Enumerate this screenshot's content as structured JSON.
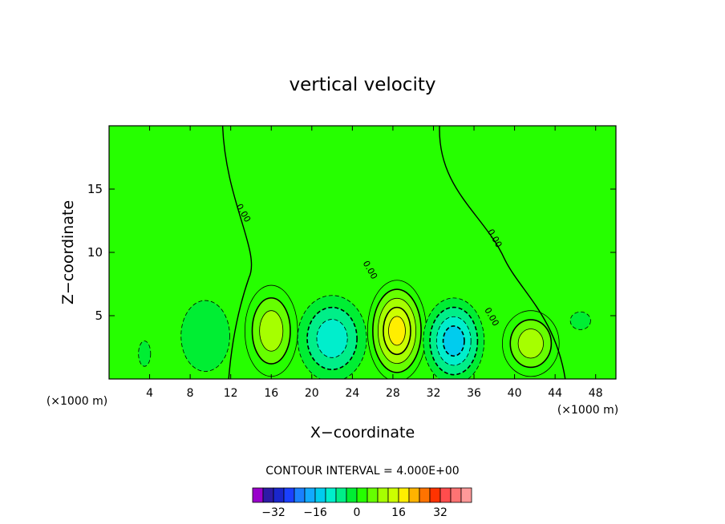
{
  "chart_data": {
    "type": "heatmap",
    "title": "vertical velocity",
    "xlabel": "X−coordinate",
    "ylabel": "Z−coordinate",
    "x_unit_left": "(×1000 m)",
    "x_unit_right": "(×1000 m)",
    "xlim": [
      0,
      50
    ],
    "ylim": [
      0,
      20
    ],
    "x_ticks": [
      4,
      8,
      12,
      16,
      20,
      24,
      28,
      32,
      36,
      40,
      44,
      48
    ],
    "x_tick_labels": [
      "4",
      "8",
      "12",
      "16",
      "20",
      "24",
      "28",
      "32",
      "36",
      "40",
      "44",
      "48"
    ],
    "y_ticks": [
      5,
      10,
      15
    ],
    "y_tick_labels": [
      "5",
      "10",
      "15"
    ],
    "contour_interval_text": "CONTOUR INTERVAL = 4.000E+00",
    "contour_interval": 4,
    "background_value": 0,
    "contour_zero_labels": [
      {
        "text": "0.00",
        "x": 13.0,
        "z": 13.0
      },
      {
        "text": "0.00",
        "x": 25.5,
        "z": 8.5
      },
      {
        "text": "0.00",
        "x": 37.8,
        "z": 11.0
      },
      {
        "text": "0.00",
        "x": 37.5,
        "z": 4.8
      }
    ],
    "cells": [
      {
        "x": 16.0,
        "z": 3.8,
        "rx": 2.6,
        "rz": 3.6,
        "value": 12
      },
      {
        "x": 22.0,
        "z": 3.2,
        "rx": 3.4,
        "rz": 3.4,
        "value": -12
      },
      {
        "x": 28.4,
        "z": 3.8,
        "rx": 2.9,
        "rz": 4.0,
        "value": 20
      },
      {
        "x": 34.0,
        "z": 3.0,
        "rx": 3.0,
        "rz": 3.4,
        "value": -16
      },
      {
        "x": 41.6,
        "z": 2.8,
        "rx": 2.8,
        "rz": 2.6,
        "value": 12
      },
      {
        "x": 9.5,
        "z": 3.4,
        "rx": 2.4,
        "rz": 2.8,
        "value": -4
      },
      {
        "x": 46.5,
        "z": 4.6,
        "rx": 1.0,
        "rz": 0.7,
        "value": -4
      },
      {
        "x": 3.5,
        "z": 2.0,
        "rx": 0.6,
        "rz": 1.0,
        "value": -4
      }
    ],
    "colorbar": {
      "levels": [
        -36,
        -32,
        -28,
        -24,
        -20,
        -16,
        -12,
        -8,
        -4,
        0,
        4,
        8,
        12,
        16,
        20,
        24,
        28,
        32,
        36
      ],
      "colors": [
        "#9900cc",
        "#2d1aa6",
        "#1a26cc",
        "#1a40ff",
        "#1a80ff",
        "#12aaff",
        "#00ccee",
        "#00eecc",
        "#00ee88",
        "#00ee33",
        "#26ff00",
        "#66ff00",
        "#a6ff00",
        "#ccff00",
        "#ffee00",
        "#ffb300",
        "#ff7300",
        "#ff3300",
        "#ff4d4d",
        "#ff7373",
        "#ff9999"
      ],
      "tick_values": [
        -32,
        -16,
        0,
        16,
        32
      ],
      "tick_labels": [
        "−32",
        "−16",
        "0",
        "16",
        "32"
      ]
    }
  }
}
